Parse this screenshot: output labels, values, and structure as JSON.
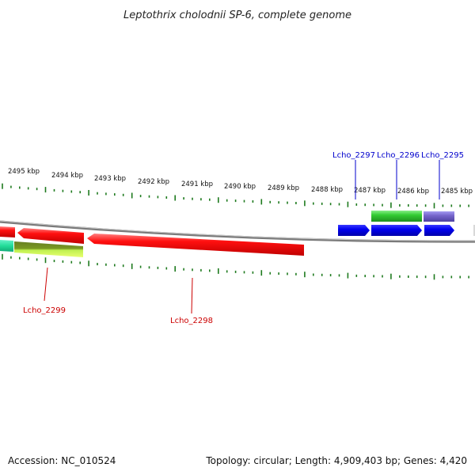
{
  "title": "Leptothrix cholodnii SP-6, complete genome",
  "footer": {
    "accession": "Accession: NC_010524",
    "summary": "Topology: circular; Length: 4,909,403 bp; Genes: 4,420"
  },
  "scale_labels": [
    "2495 kbp",
    "2494 kbp",
    "2493 kbp",
    "2492 kbp",
    "2491 kbp",
    "2490 kbp",
    "2489 kbp",
    "2488 kbp",
    "2487 kbp",
    "2486 kbp",
    "2485 kbp"
  ],
  "gene_labels": [
    {
      "id": "lcho-2297",
      "text": "Lcho_2297",
      "color": "#0000cc"
    },
    {
      "id": "lcho-2296",
      "text": "Lcho_2296",
      "color": "#0000cc"
    },
    {
      "id": "lcho-2295",
      "text": "Lcho_2295",
      "color": "#0000cc"
    },
    {
      "id": "lcho-2299",
      "text": "Lcho_2299",
      "color": "#cc0000"
    },
    {
      "id": "lcho-2298",
      "text": "Lcho_2298",
      "color": "#cc0000"
    }
  ],
  "colors": {
    "tick": "#1e7a1e",
    "backbone": "#888888",
    "reverse_strand": "#ff0000",
    "forward_strand": "#0000ee",
    "green_feature": "#33cc33",
    "purple_feature": "#7766cc",
    "lime_feature": "#99ee33",
    "teal_feature": "#33ddaa"
  }
}
